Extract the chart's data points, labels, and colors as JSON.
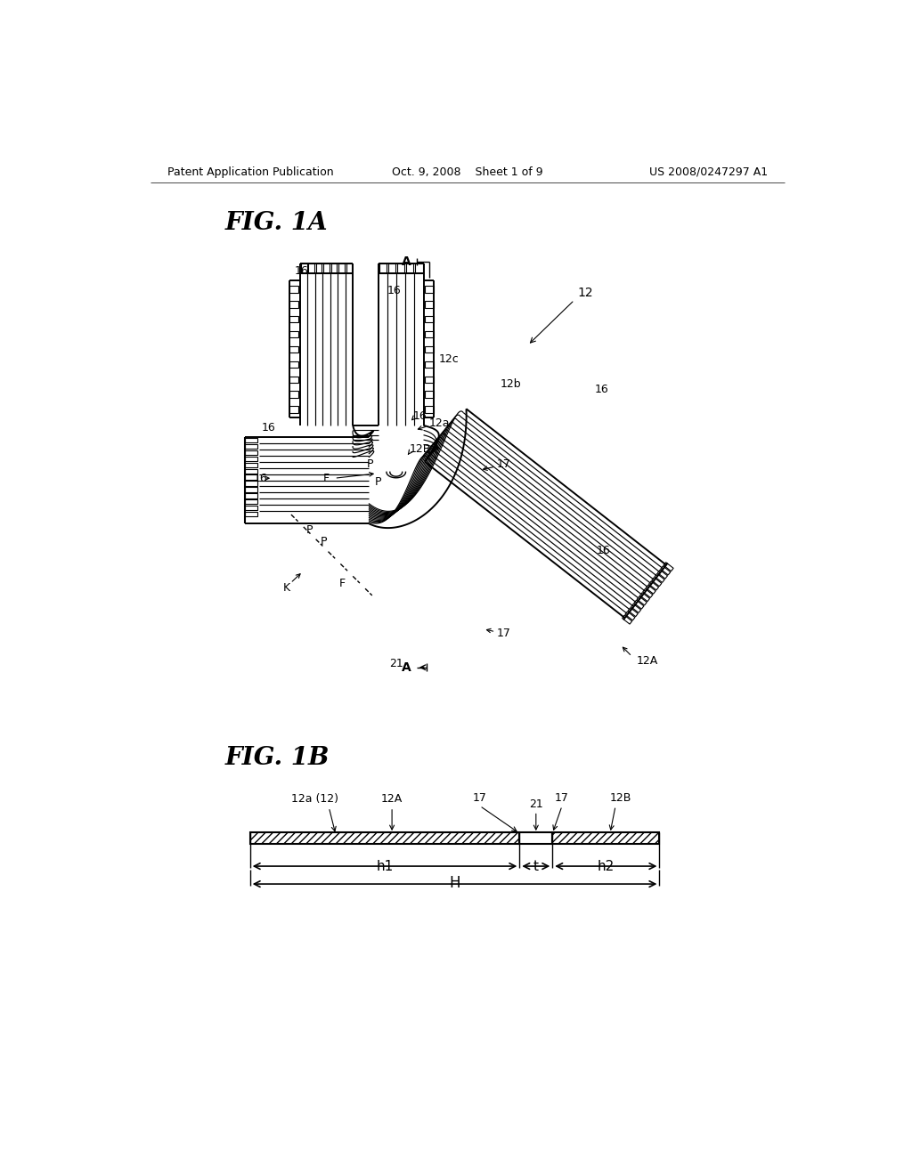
{
  "bg_color": "#ffffff",
  "header_left": "Patent Application Publication",
  "header_center": "Oct. 9, 2008    Sheet 1 of 9",
  "header_right": "US 2008/0247297 A1",
  "fig1a_title": "FIG. 1A",
  "fig1b_title": "FIG. 1B"
}
